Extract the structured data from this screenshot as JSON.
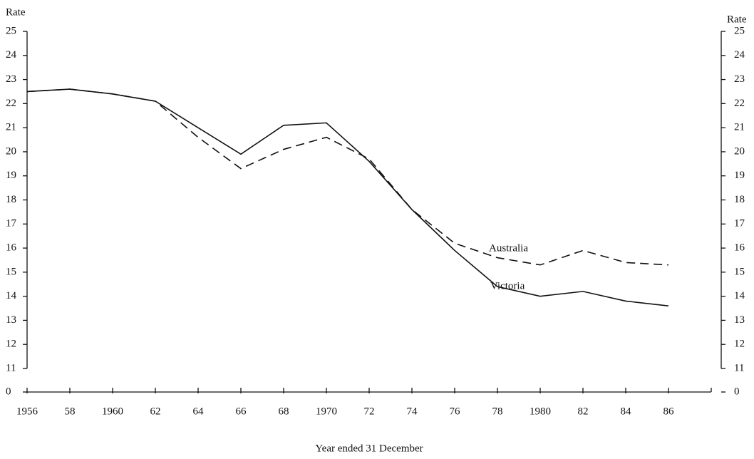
{
  "chart_data": {
    "type": "line",
    "y_label": "Rate",
    "y2_label": "Rate",
    "x_label": "Year ended 31 December",
    "x": [
      1956,
      1958,
      1960,
      1962,
      1964,
      1966,
      1968,
      1970,
      1972,
      1974,
      1976,
      1978,
      1980,
      1982,
      1984,
      1986
    ],
    "series": [
      {
        "name": "Australia",
        "color": "#111111",
        "dashed": true,
        "values": [
          22.5,
          22.6,
          22.4,
          22.1,
          20.6,
          19.3,
          20.1,
          20.6,
          19.7,
          17.6,
          16.2,
          15.6,
          15.3,
          15.9,
          15.4,
          15.3
        ]
      },
      {
        "name": "Victoria",
        "color": "#111111",
        "dashed": false,
        "values": [
          22.5,
          22.6,
          22.4,
          22.1,
          21.0,
          19.9,
          21.1,
          21.2,
          19.6,
          17.6,
          15.9,
          14.4,
          14.0,
          14.2,
          13.8,
          13.6
        ]
      }
    ],
    "xlim": [
      1956,
      1988
    ],
    "xticks": [
      1956,
      {
        "value": 1958,
        "label": "58"
      },
      1960,
      {
        "value": 1962,
        "label": "62"
      },
      {
        "value": 1964,
        "label": "64"
      },
      {
        "value": 1966,
        "label": "66"
      },
      {
        "value": 1968,
        "label": "68"
      },
      1970,
      {
        "value": 1972,
        "label": "72"
      },
      {
        "value": 1974,
        "label": "74"
      },
      {
        "value": 1976,
        "label": "76"
      },
      {
        "value": 1978,
        "label": "78"
      },
      1980,
      {
        "value": 1982,
        "label": "82"
      },
      {
        "value": 1984,
        "label": "84"
      },
      {
        "value": 1986,
        "label": "86"
      }
    ],
    "ylim": [
      0,
      25
    ],
    "axis_break": [
      0,
      11
    ],
    "yticks": [
      0,
      11,
      12,
      13,
      14,
      15,
      16,
      17,
      18,
      19,
      20,
      21,
      22,
      23,
      24,
      25
    ],
    "y2lim": [
      0,
      25
    ],
    "y2ticks": [
      0,
      11,
      12,
      13,
      14,
      15,
      16,
      17,
      18,
      19,
      20,
      21,
      22,
      23,
      24,
      25
    ],
    "grid": false
  }
}
